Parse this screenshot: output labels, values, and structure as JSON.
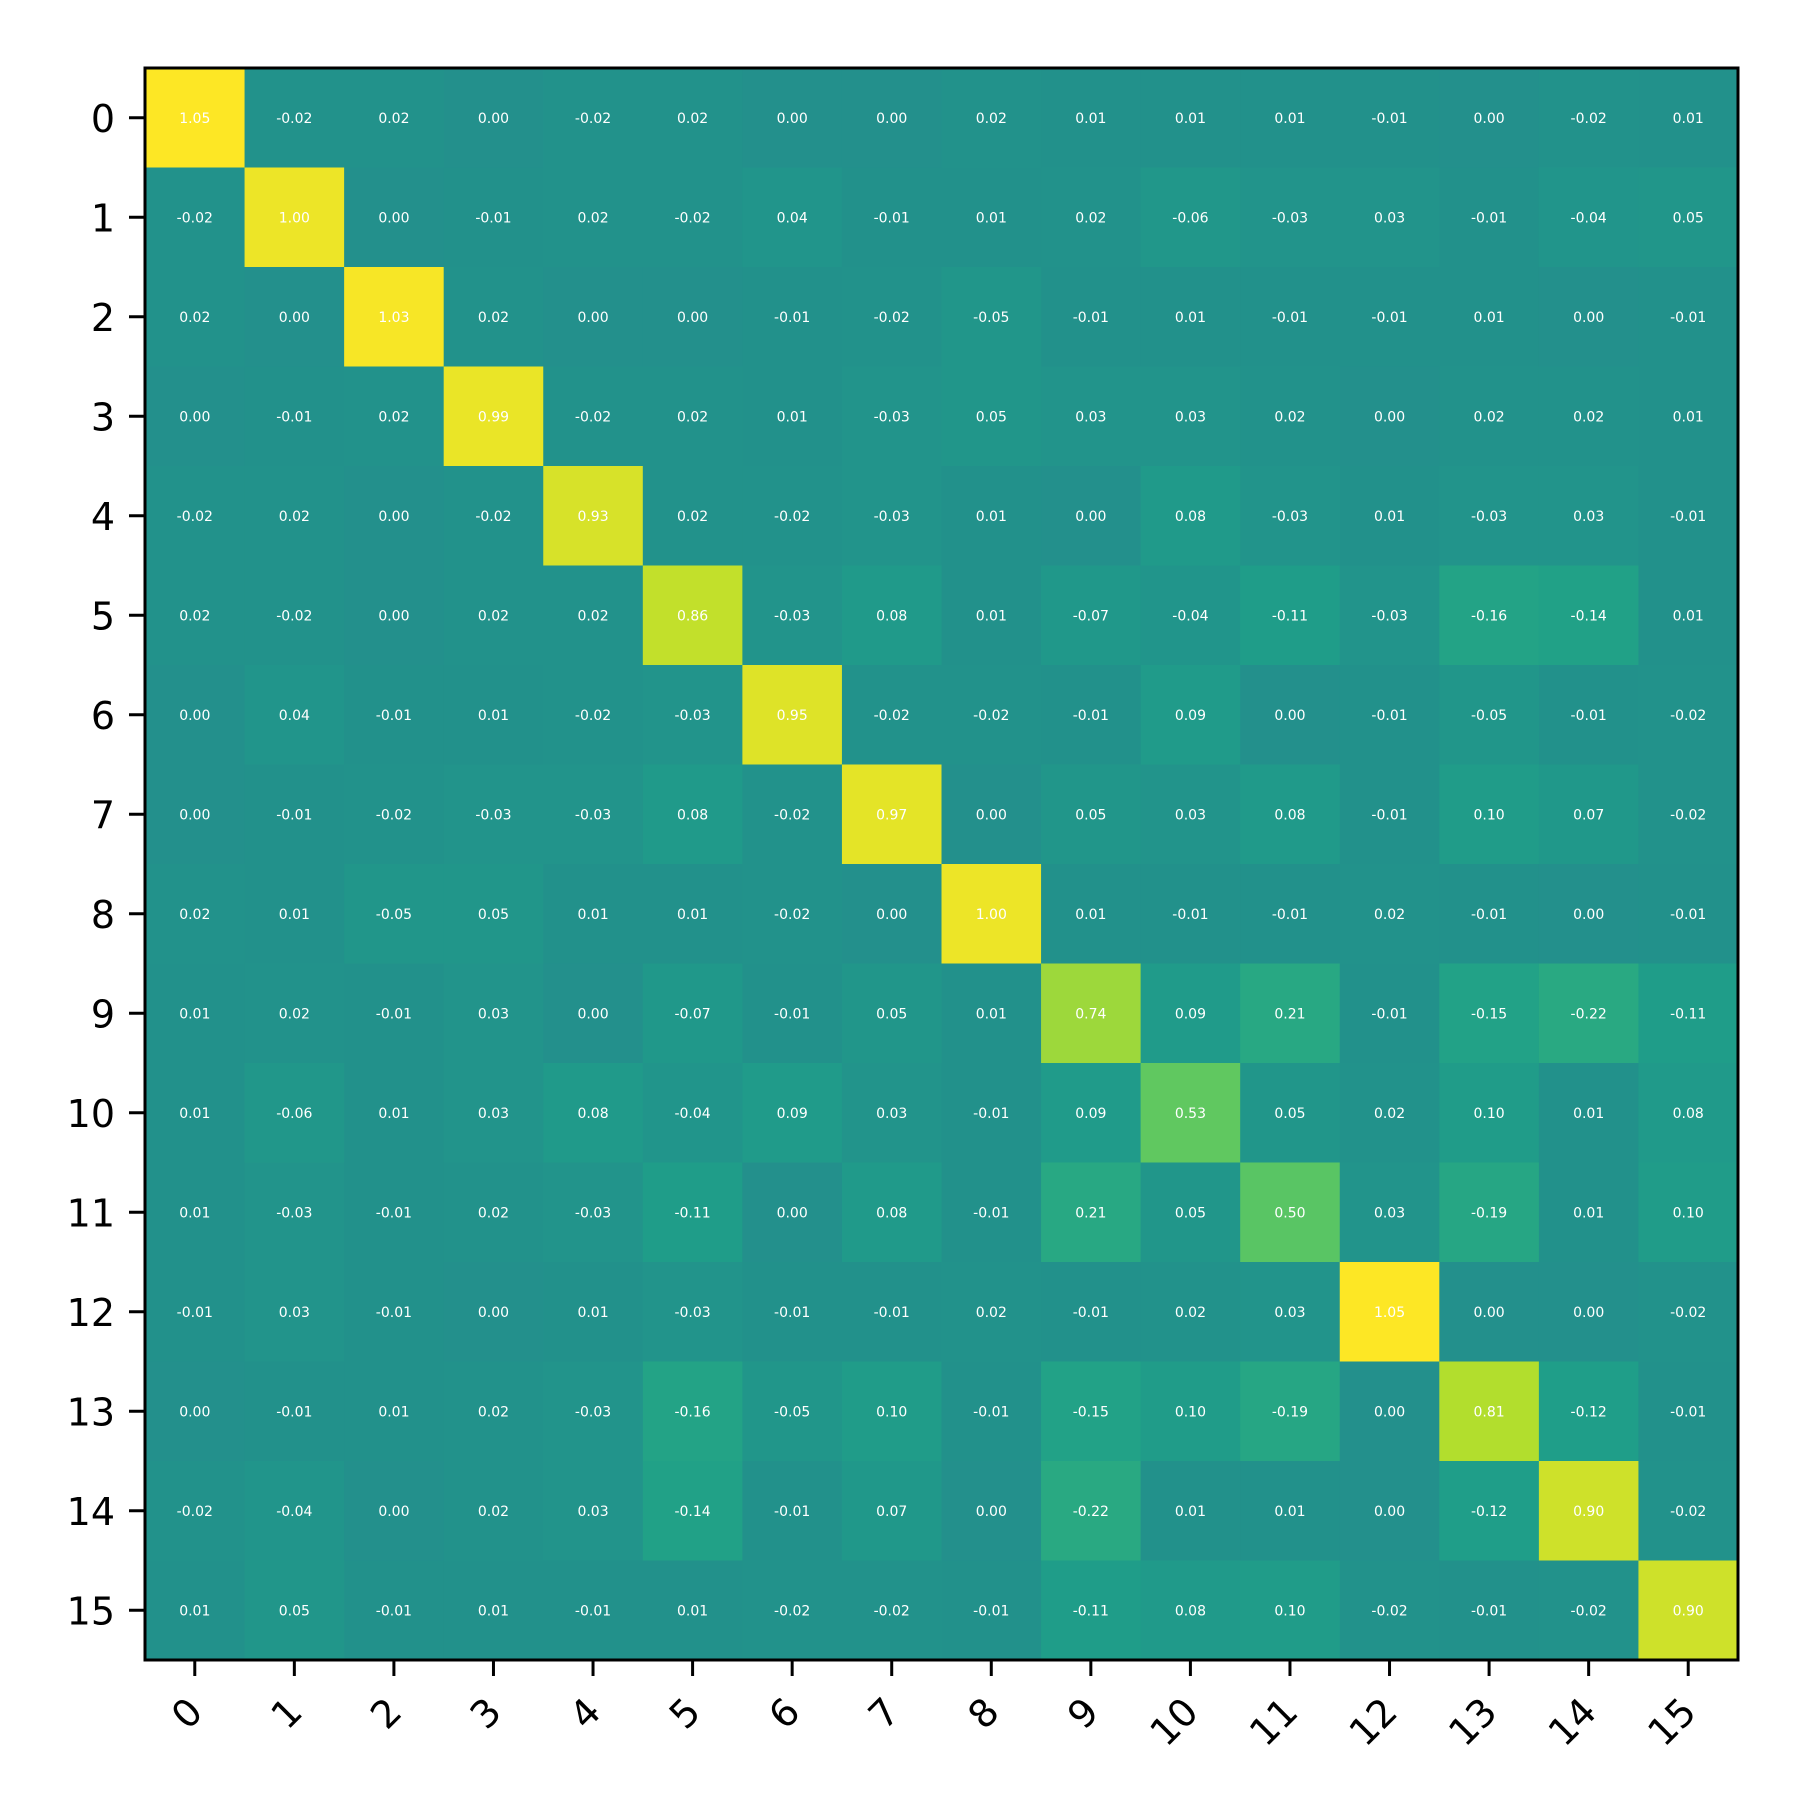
{
  "chart_data": {
    "type": "heatmap",
    "title": "",
    "xlabel": "",
    "ylabel": "",
    "x_categories": [
      "0",
      "1",
      "2",
      "3",
      "4",
      "5",
      "6",
      "7",
      "8",
      "9",
      "10",
      "11",
      "12",
      "13",
      "14",
      "15"
    ],
    "y_categories": [
      "0",
      "1",
      "2",
      "3",
      "4",
      "5",
      "6",
      "7",
      "8",
      "9",
      "10",
      "11",
      "12",
      "13",
      "14",
      "15"
    ],
    "colormap": "viridis",
    "color_range": [
      -1.05,
      1.05
    ],
    "value_format": "2 decimals",
    "grid": false,
    "legend": "none",
    "values": [
      [
        1.05,
        -0.02,
        0.02,
        -0.0,
        -0.02,
        0.02,
        -0.0,
        0.0,
        0.02,
        0.01,
        0.01,
        0.01,
        -0.01,
        -0.0,
        -0.02,
        0.01
      ],
      [
        -0.02,
        1.0,
        0.0,
        -0.01,
        0.02,
        -0.02,
        0.04,
        -0.01,
        0.01,
        0.02,
        -0.06,
        -0.03,
        0.03,
        -0.01,
        -0.04,
        0.05
      ],
      [
        0.02,
        0.0,
        1.03,
        0.02,
        0.0,
        0.0,
        -0.01,
        -0.02,
        -0.05,
        -0.01,
        0.01,
        -0.01,
        -0.01,
        0.01,
        0.0,
        -0.01
      ],
      [
        -0.0,
        -0.01,
        0.02,
        0.99,
        -0.02,
        0.02,
        0.01,
        -0.03,
        0.05,
        0.03,
        0.03,
        0.02,
        -0.0,
        0.02,
        0.02,
        0.01
      ],
      [
        -0.02,
        0.02,
        0.0,
        -0.02,
        0.93,
        0.02,
        -0.02,
        -0.03,
        0.01,
        0.0,
        0.08,
        -0.03,
        0.01,
        -0.03,
        0.03,
        -0.01
      ],
      [
        0.02,
        -0.02,
        0.0,
        0.02,
        0.02,
        0.86,
        -0.03,
        0.08,
        0.01,
        -0.07,
        -0.04,
        -0.11,
        -0.03,
        -0.16,
        -0.14,
        0.01
      ],
      [
        -0.0,
        0.04,
        -0.01,
        0.01,
        -0.02,
        -0.03,
        0.95,
        -0.02,
        -0.02,
        -0.01,
        0.09,
        -0.0,
        -0.01,
        -0.05,
        -0.01,
        -0.02
      ],
      [
        0.0,
        -0.01,
        -0.02,
        -0.03,
        -0.03,
        0.08,
        -0.02,
        0.97,
        -0.0,
        0.05,
        0.03,
        0.08,
        -0.01,
        0.1,
        0.07,
        -0.02
      ],
      [
        0.02,
        0.01,
        -0.05,
        0.05,
        0.01,
        0.01,
        -0.02,
        -0.0,
        1.0,
        0.01,
        -0.01,
        -0.01,
        0.02,
        -0.01,
        -0.0,
        -0.01
      ],
      [
        0.01,
        0.02,
        -0.01,
        0.03,
        0.0,
        -0.07,
        -0.01,
        0.05,
        0.01,
        0.74,
        0.09,
        0.21,
        -0.01,
        -0.15,
        -0.22,
        -0.11
      ],
      [
        0.01,
        -0.06,
        0.01,
        0.03,
        0.08,
        -0.04,
        0.09,
        0.03,
        -0.01,
        0.09,
        0.53,
        0.05,
        0.02,
        0.1,
        0.01,
        0.08
      ],
      [
        0.01,
        -0.03,
        -0.01,
        0.02,
        -0.03,
        -0.11,
        -0.0,
        0.08,
        -0.01,
        0.21,
        0.05,
        0.5,
        0.03,
        -0.19,
        0.01,
        0.1
      ],
      [
        -0.01,
        0.03,
        -0.01,
        -0.0,
        0.01,
        -0.03,
        -0.01,
        -0.01,
        0.02,
        -0.01,
        0.02,
        0.03,
        1.05,
        -0.0,
        -0.0,
        -0.02
      ],
      [
        -0.0,
        -0.01,
        0.01,
        0.02,
        -0.03,
        -0.16,
        -0.05,
        0.1,
        -0.01,
        -0.15,
        0.1,
        -0.19,
        -0.0,
        0.81,
        -0.12,
        -0.01
      ],
      [
        -0.02,
        -0.04,
        0.0,
        0.02,
        0.03,
        -0.14,
        -0.01,
        0.07,
        -0.0,
        -0.22,
        0.01,
        0.01,
        -0.0,
        -0.12,
        0.9,
        -0.02
      ],
      [
        0.01,
        0.05,
        -0.01,
        0.01,
        -0.01,
        0.01,
        -0.02,
        -0.02,
        -0.01,
        -0.11,
        0.08,
        0.1,
        -0.02,
        -0.01,
        -0.02,
        0.9
      ]
    ]
  }
}
